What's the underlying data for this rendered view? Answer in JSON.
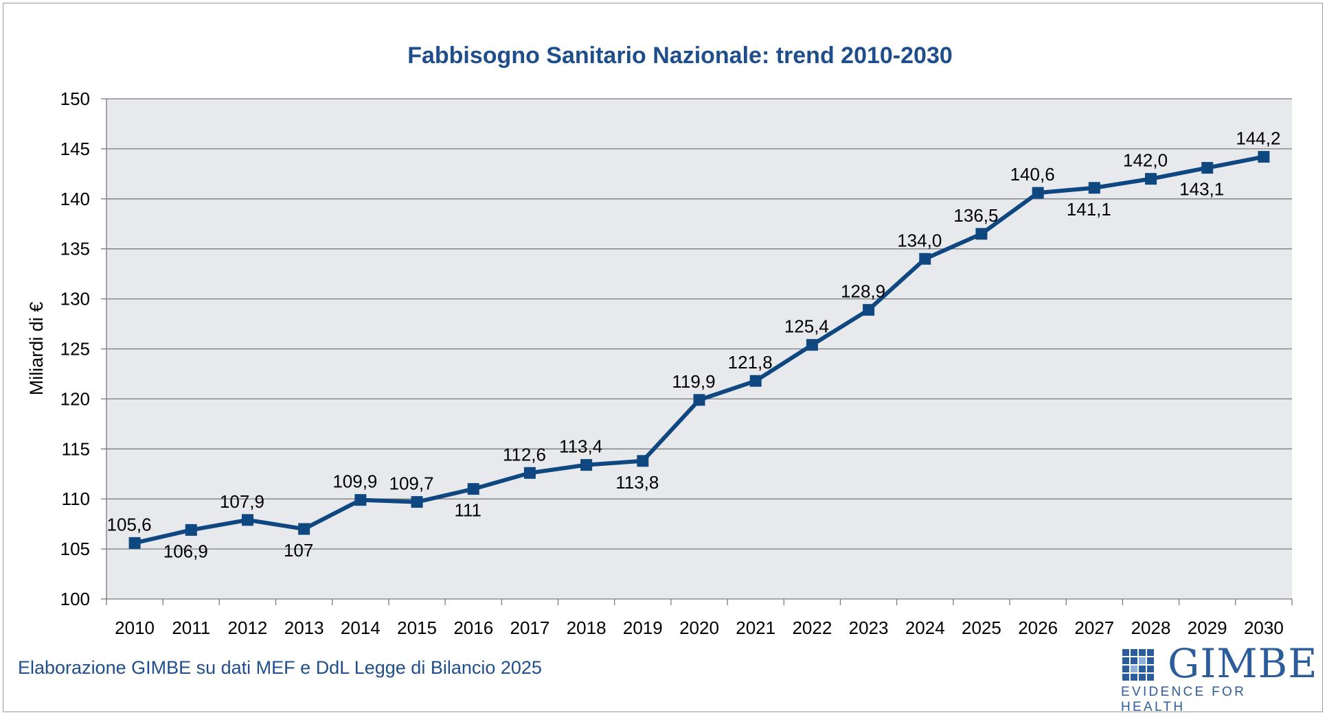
{
  "chart_data": {
    "type": "line",
    "title": "Fabbisogno Sanitario Nazionale: trend 2010-2030",
    "xlabel": "",
    "ylabel": "Miliardi di €",
    "ylim": [
      100,
      150
    ],
    "yticks": [
      "100",
      "105",
      "110",
      "115",
      "120",
      "125",
      "130",
      "135",
      "140",
      "145",
      "150"
    ],
    "grid": true,
    "categories": [
      "2010",
      "2011",
      "2012",
      "2013",
      "2014",
      "2015",
      "2016",
      "2017",
      "2018",
      "2019",
      "2020",
      "2021",
      "2022",
      "2023",
      "2024",
      "2025",
      "2026",
      "2027",
      "2028",
      "2029",
      "2030"
    ],
    "series": [
      {
        "name": "Fabbisogno Sanitario Nazionale",
        "color": "#0f4780",
        "values": [
          105.6,
          106.9,
          107.9,
          107.0,
          109.9,
          109.7,
          111.0,
          112.6,
          113.4,
          113.8,
          119.9,
          121.8,
          125.4,
          128.9,
          134.0,
          136.5,
          140.6,
          141.1,
          142.0,
          143.1,
          144.2
        ],
        "labels": [
          "105,6",
          "106,9",
          "107,9",
          "107",
          "109,9",
          "109,7",
          "111",
          "112,6",
          "113,4",
          "113,8",
          "119,9",
          "121,8",
          "125,4",
          "128,9",
          "134,0",
          "136,5",
          "140,6",
          "141,1",
          "142,0",
          "143,1",
          "144,2"
        ],
        "label_positions": [
          "above",
          "below",
          "above",
          "below",
          "above",
          "above",
          "below",
          "above",
          "above",
          "below",
          "above",
          "above",
          "above",
          "above",
          "above",
          "above",
          "above",
          "below",
          "above",
          "below",
          "above"
        ]
      }
    ]
  },
  "colors": {
    "title": "#1f4e8c",
    "plot_background": "#e8e9ed",
    "gridline": "#7a7a7a",
    "series": "#0f4780",
    "source_text": "#1f4e8c",
    "logo": "#2c5d9a"
  },
  "source_note": "Elaborazione GIMBE su dati MEF e DdL Legge di Bilancio 2025",
  "logo": {
    "wordmark": "GIMBE",
    "tagline": "EVIDENCE FOR HEALTH"
  }
}
